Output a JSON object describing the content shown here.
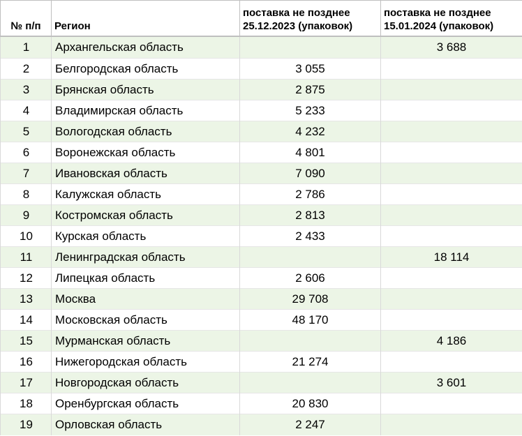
{
  "header": {
    "num_col": "№ п/п",
    "region_col": "Регион",
    "col3_line1": "поставка не позднее",
    "col3_line2": "25.12.2023 (упаковок)",
    "col4_line1": "поставка не позднее",
    "col4_line2": "15.01.2024 (упаковок)"
  },
  "rows": [
    {
      "n": "1",
      "region": "Архангельская область",
      "d1": "",
      "d2": "3 688"
    },
    {
      "n": "2",
      "region": "Белгородская область",
      "d1": "3 055",
      "d2": ""
    },
    {
      "n": "3",
      "region": "Брянская область",
      "d1": "2 875",
      "d2": ""
    },
    {
      "n": "4",
      "region": "Владимирская область",
      "d1": "5 233",
      "d2": ""
    },
    {
      "n": "5",
      "region": "Вологодская область",
      "d1": "4 232",
      "d2": ""
    },
    {
      "n": "6",
      "region": "Воронежская область",
      "d1": "4 801",
      "d2": ""
    },
    {
      "n": "7",
      "region": "Ивановская область",
      "d1": "7 090",
      "d2": ""
    },
    {
      "n": "8",
      "region": "Калужская область",
      "d1": "2 786",
      "d2": ""
    },
    {
      "n": "9",
      "region": "Костромская область",
      "d1": "2 813",
      "d2": ""
    },
    {
      "n": "10",
      "region": "Курская область",
      "d1": "2 433",
      "d2": ""
    },
    {
      "n": "11",
      "region": "Ленинградская область",
      "d1": "",
      "d2": "18 114"
    },
    {
      "n": "12",
      "region": "Липецкая область",
      "d1": "2 606",
      "d2": ""
    },
    {
      "n": "13",
      "region": "Москва",
      "d1": "29 708",
      "d2": ""
    },
    {
      "n": "14",
      "region": "Московская область",
      "d1": "48 170",
      "d2": ""
    },
    {
      "n": "15",
      "region": "Мурманская область",
      "d1": "",
      "d2": "4 186"
    },
    {
      "n": "16",
      "region": "Нижегородская область",
      "d1": "21 274",
      "d2": ""
    },
    {
      "n": "17",
      "region": "Новгородская область",
      "d1": "",
      "d2": "3 601"
    },
    {
      "n": "18",
      "region": "Оренбургская область",
      "d1": "20 830",
      "d2": ""
    },
    {
      "n": "19",
      "region": "Орловская область",
      "d1": "2 247",
      "d2": ""
    }
  ],
  "colors": {
    "band": "#ecf5e6",
    "border": "#bfbfbf"
  }
}
